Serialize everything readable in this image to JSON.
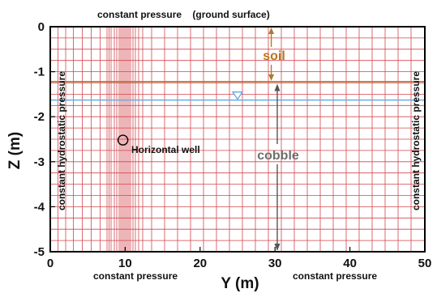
{
  "labels": {
    "top_bc": "constant pressure    (ground surface)",
    "bottom_bc_left": "constant pressure",
    "bottom_bc_right": "constant pressure",
    "side_bc_left": "constant hydrostatic pressure",
    "side_bc_right": "constant hydrostatic pressure",
    "soil": "soil",
    "cobble": "cobble",
    "well": "Horizontal well"
  },
  "colors": {
    "grid": "#d2464f",
    "soil_line": "#b07a2a",
    "soil_text": "#b8761e",
    "water_table": "#6aaee0",
    "arrow": "#555555",
    "frame": "#000000"
  },
  "chart_data": {
    "type": "diagram",
    "xlabel": "Y (m)",
    "ylabel": "Z (m)",
    "xlim": [
      0,
      50
    ],
    "ylim": [
      -5,
      0
    ],
    "x_ticks": [
      0,
      10,
      20,
      30,
      40,
      50
    ],
    "y_ticks": [
      0,
      -1,
      -2,
      -3,
      -4,
      -5
    ],
    "soil_interface_z": -1.22,
    "water_table_z": -1.63,
    "water_table_marker_y": 25,
    "well": {
      "y": 9.7,
      "z": -2.52
    },
    "soil_arrow": {
      "y": 29.5,
      "z_top": 0,
      "z_bottom": -1.22
    },
    "cobble_arrow": {
      "y": 30.3,
      "z_top": -1.25,
      "z_bottom": -5
    }
  }
}
